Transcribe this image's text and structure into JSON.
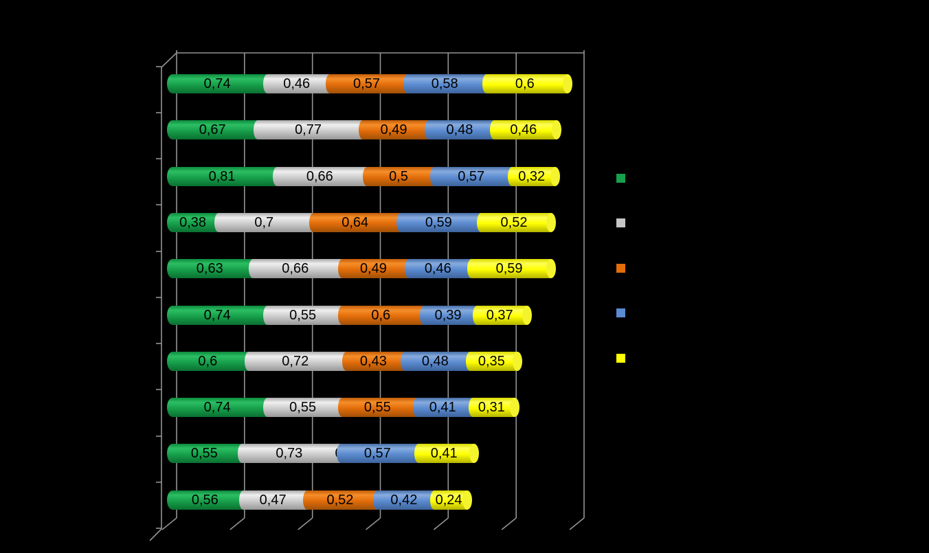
{
  "chart_data": {
    "type": "bar",
    "variant": "3d-cylinder-horizontal-stacked",
    "background_color": "#000000",
    "title": "",
    "categories": [
      "",
      "",
      "",
      "",
      "",
      "",
      "",
      "",
      "",
      ""
    ],
    "series": [
      {
        "name": "series-green",
        "color": "#17A04B",
        "values": [
          0.74,
          0.67,
          0.81,
          0.38,
          0.63,
          0.74,
          0.6,
          0.74,
          0.55,
          0.56
        ]
      },
      {
        "name": "series-silver",
        "color": "#C6C6C6",
        "values": [
          0.46,
          0.77,
          0.66,
          0.7,
          0.66,
          0.55,
          0.72,
          0.55,
          0.73,
          0.47
        ]
      },
      {
        "name": "series-orange",
        "color": "#E26D0A",
        "values": [
          0.57,
          0.49,
          0.5,
          0.64,
          0.49,
          0.6,
          0.43,
          0.55,
          0.0,
          0.52
        ]
      },
      {
        "name": "series-blue",
        "color": "#5B8BD0",
        "values": [
          0.58,
          0.48,
          0.57,
          0.59,
          0.46,
          0.39,
          0.48,
          0.41,
          0.57,
          0.42
        ]
      },
      {
        "name": "series-yellow",
        "color": "#FFFF00",
        "values": [
          0.6,
          0.46,
          0.32,
          0.52,
          0.59,
          0.37,
          0.35,
          0.31,
          0.41,
          0.24
        ]
      }
    ],
    "data_labels": [
      [
        "0,74",
        "0,46",
        "0,57",
        "0,58",
        "0,6"
      ],
      [
        "0,67",
        "0,77",
        "0,49",
        "0,48",
        "0,46"
      ],
      [
        "0,81",
        "0,66",
        "0,5",
        "0,57",
        "0,32"
      ],
      [
        "0,38",
        "0,7",
        "0,64",
        "0,59",
        "0,52"
      ],
      [
        "0,63",
        "0,66",
        "0,49",
        "0,46",
        "0,59"
      ],
      [
        "0,74",
        "0,55",
        "0,6",
        "0,39",
        "0,37"
      ],
      [
        "0,6",
        "0,72",
        "0,43",
        "0,48",
        "0,35"
      ],
      [
        "0,74",
        "0,55",
        "0,55",
        "0,41",
        "0,31"
      ],
      [
        "0,55",
        "0,73",
        "0",
        "0,57",
        "0,41"
      ],
      [
        "0,56",
        "0,47",
        "0,52",
        "0,42",
        "0,24"
      ]
    ],
    "data_label_decimal_separator": ",",
    "value_axis": {
      "min": 0,
      "max": 3,
      "gridline_step": 0.5,
      "tick_labels_visible": false
    },
    "category_axis": {
      "category_count": 10,
      "tick_labels_visible": false
    },
    "gridlines": {
      "visible": true,
      "color": "#949494"
    },
    "legend": {
      "position": "right",
      "labels_visible": false,
      "swatch_colors": [
        "#17A04B",
        "#C6C6C6",
        "#E26D0A",
        "#5B8BD0",
        "#FFFF00"
      ]
    }
  }
}
